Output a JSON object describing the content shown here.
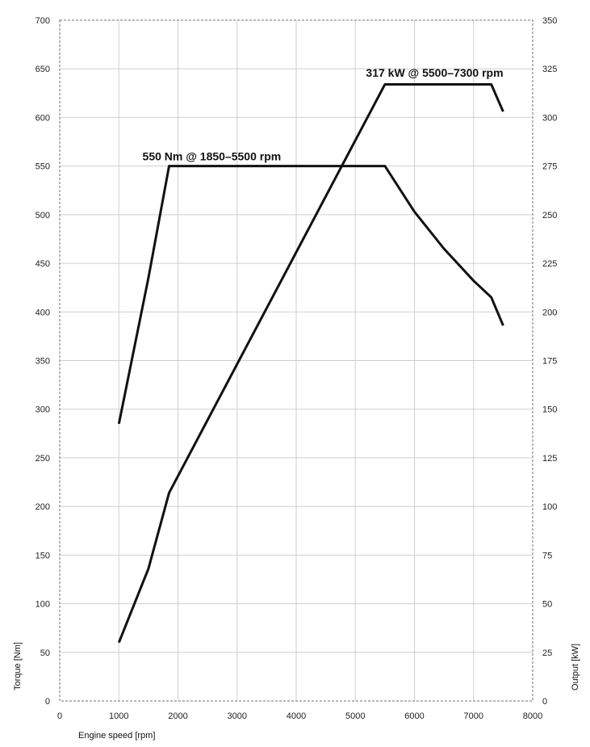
{
  "chart_data": {
    "type": "line",
    "title": "",
    "xlabel": "Engine speed [rpm]",
    "ylabel": "Torque [Nm]",
    "y2label": "Output [kW]",
    "xlim": [
      0,
      8000
    ],
    "ylim": [
      0,
      700
    ],
    "y2lim": [
      0,
      350
    ],
    "xticks": [
      "0",
      "1000",
      "2000",
      "3000",
      "4000",
      "5000",
      "6000",
      "7000",
      "8000"
    ],
    "yticks": [
      "0",
      "50",
      "100",
      "150",
      "200",
      "250",
      "300",
      "350",
      "400",
      "450",
      "500",
      "550",
      "600",
      "650",
      "700"
    ],
    "y2ticks": [
      "0",
      "25",
      "50",
      "75",
      "100",
      "125",
      "150",
      "175",
      "200",
      "225",
      "250",
      "275",
      "300",
      "325",
      "350"
    ],
    "grid": true,
    "colors": {
      "curve": "#111111",
      "grid": "#cfcfcf",
      "frame": "#707070"
    },
    "series": [
      {
        "axis": "left",
        "x": [
          1000,
          1500,
          1850,
          5500,
          6000,
          6500,
          7000,
          7300,
          7500
        ],
        "y": [
          285,
          435,
          550,
          550,
          503,
          465,
          432,
          415,
          386
        ]
      },
      {
        "axis": "right",
        "x": [
          1000,
          1500,
          1850,
          5500,
          7300,
          7500
        ],
        "y": [
          30,
          68,
          107,
          317,
          317,
          303
        ]
      }
    ],
    "annotations": [
      {
        "text": "550 Nm @ 1850–5500 rpm",
        "x": 1400,
        "y": 556,
        "axis": "left"
      },
      {
        "text": "317 kW @ 5500–7300 rpm",
        "x": 5180,
        "y": 321,
        "axis": "right"
      }
    ]
  }
}
